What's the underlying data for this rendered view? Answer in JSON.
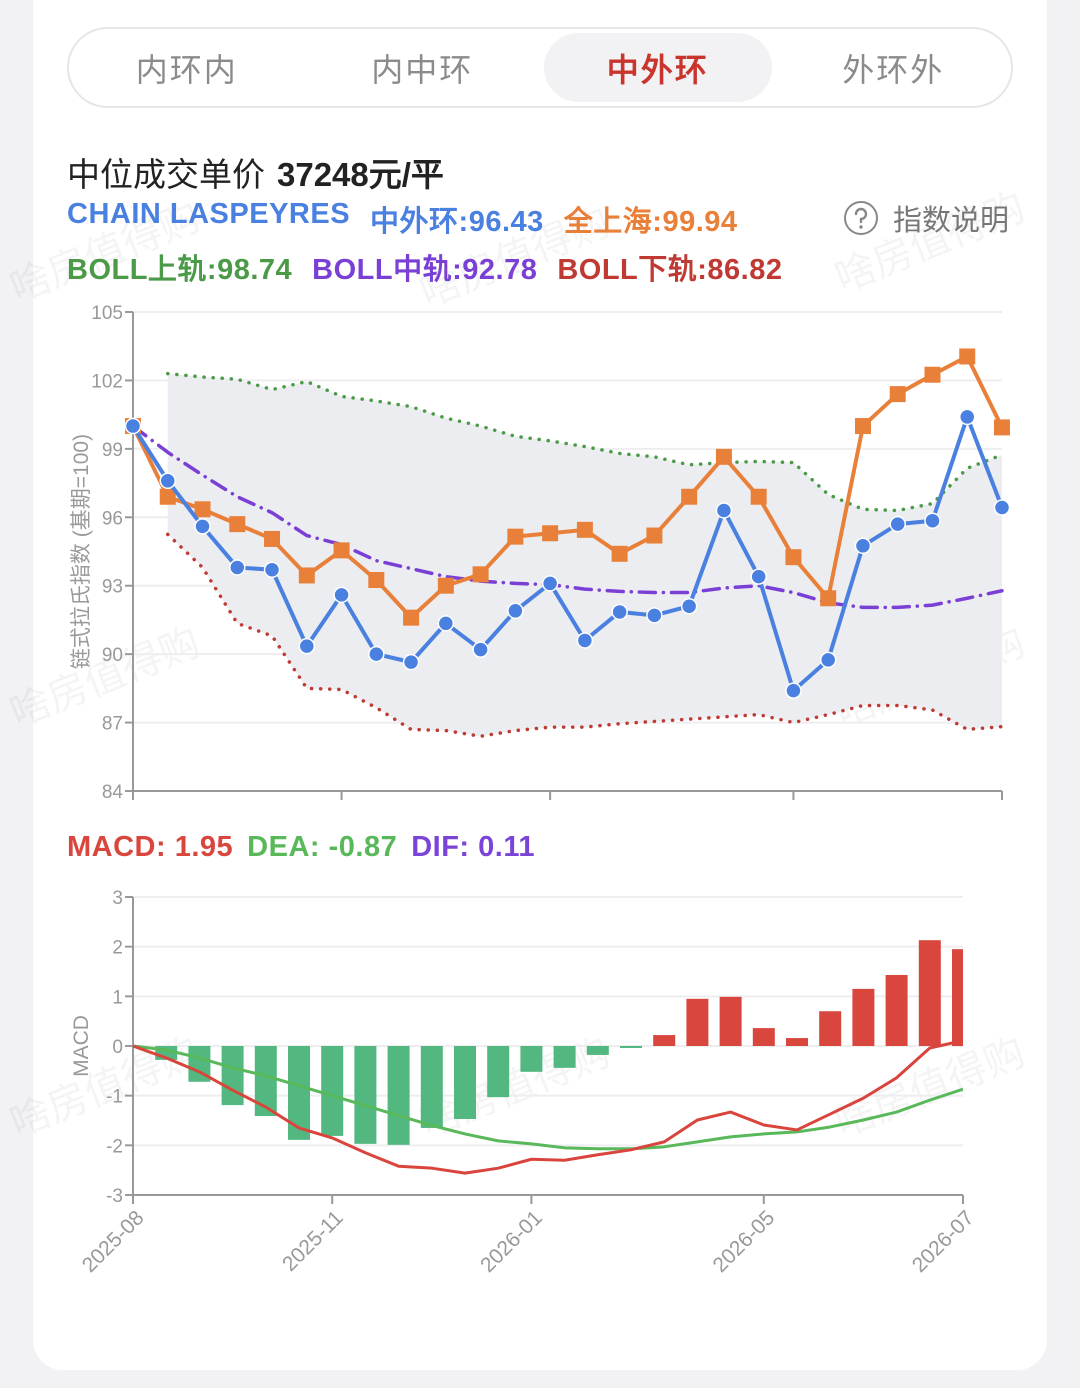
{
  "tabs": {
    "items": [
      "内环内",
      "内中环",
      "中外环",
      "外环外"
    ],
    "active": 2
  },
  "header": {
    "label": "中位成交单价",
    "price": "37248元/平",
    "help": "指数说明"
  },
  "watermark": "啥房值得购",
  "chart_data": [
    {
      "type": "line",
      "subtitle": "CHAIN LASPEYRES",
      "ylabel": "链式拉氏指数 (基期=100)",
      "ylim": [
        84,
        105
      ],
      "yticks": [
        84,
        87,
        90,
        93,
        96,
        99,
        102,
        105
      ],
      "grid": true,
      "band": {
        "color": "#ecedf0"
      },
      "series": [
        {
          "name": "中外环:96.43",
          "color": "#4a80e0",
          "style": "solid",
          "marker": "circle",
          "values": [
            100,
            97.6,
            95.6,
            93.8,
            93.7,
            90.35,
            92.6,
            90.0,
            89.65,
            91.35,
            90.2,
            91.9,
            93.1,
            90.6,
            91.85,
            91.7,
            92.1,
            96.3,
            93.4,
            88.4,
            89.75,
            94.75,
            95.7,
            95.85,
            100.4,
            96.43
          ]
        },
        {
          "name": "全上海:99.94",
          "color": "#e9803a",
          "style": "solid",
          "marker": "square",
          "values": [
            100,
            96.9,
            96.35,
            95.7,
            95.05,
            93.45,
            94.55,
            93.25,
            91.6,
            93.0,
            93.5,
            95.15,
            95.3,
            95.45,
            94.4,
            95.2,
            96.9,
            98.65,
            96.9,
            94.25,
            92.45,
            100.0,
            101.4,
            102.25,
            103.05,
            99.94
          ]
        },
        {
          "name": "BOLL上轨:98.74",
          "color": "#4a9a48",
          "style": "dotted",
          "fill": "upper",
          "values": [
            null,
            102.3,
            102.15,
            102.05,
            101.6,
            101.95,
            101.3,
            101.1,
            100.85,
            100.35,
            100.0,
            99.55,
            99.35,
            99.1,
            98.8,
            98.65,
            98.3,
            98.4,
            98.45,
            98.4,
            97.0,
            96.35,
            96.3,
            96.6,
            98.15,
            98.74
          ]
        },
        {
          "name": "BOLL中轨:92.78",
          "color": "#7a3fd4",
          "style": "dashdot",
          "values": [
            100,
            98.85,
            97.85,
            96.9,
            96.2,
            95.2,
            94.8,
            94.1,
            93.75,
            93.4,
            93.2,
            93.1,
            93.05,
            92.85,
            92.75,
            92.7,
            92.7,
            92.9,
            93.0,
            92.7,
            92.25,
            92.05,
            92.05,
            92.15,
            92.45,
            92.78
          ]
        },
        {
          "name": "BOLL下轨:86.82",
          "color": "#c03a34",
          "style": "dotted",
          "fill": "lower",
          "values": [
            null,
            95.25,
            93.8,
            91.35,
            90.8,
            88.5,
            88.45,
            87.65,
            86.7,
            86.65,
            86.4,
            86.65,
            86.8,
            86.8,
            86.95,
            87.05,
            87.15,
            87.25,
            87.35,
            87.0,
            87.35,
            87.75,
            87.75,
            87.55,
            86.7,
            86.82
          ]
        }
      ]
    },
    {
      "type": "macd",
      "ylabel": "MACD",
      "ylim": [
        -3,
        3
      ],
      "yticks": [
        -3,
        -2,
        -1,
        0,
        1,
        2,
        3
      ],
      "grid": true,
      "categories": [
        "2025-08",
        null,
        null,
        null,
        null,
        null,
        "2025-11",
        null,
        null,
        null,
        null,
        null,
        "2026-01",
        null,
        null,
        null,
        null,
        null,
        null,
        "2026-05",
        null,
        null,
        null,
        null,
        null,
        "2026-07"
      ],
      "series": [
        {
          "name": "MACD: 1.95",
          "kind": "bar",
          "color": "#d9463e",
          "negative_color": "#52b880",
          "values": [
            0,
            -0.28,
            -0.72,
            -1.19,
            -1.41,
            -1.89,
            -1.81,
            -1.97,
            -1.99,
            -1.65,
            -1.47,
            -1.03,
            -0.52,
            -0.44,
            -0.18,
            -0.04,
            0.22,
            0.95,
            0.99,
            0.36,
            0.16,
            0.7,
            1.15,
            1.43,
            2.13,
            1.95
          ]
        },
        {
          "name": "DEA: -0.87",
          "kind": "line",
          "color": "#58b85a",
          "values": [
            0,
            -0.08,
            -0.24,
            -0.44,
            -0.6,
            -0.8,
            -1.0,
            -1.2,
            -1.4,
            -1.6,
            -1.77,
            -1.91,
            -1.97,
            -2.05,
            -2.07,
            -2.07,
            -2.03,
            -1.93,
            -1.83,
            -1.77,
            -1.73,
            -1.63,
            -1.49,
            -1.33,
            -1.09,
            -0.87
          ]
        },
        {
          "name": "DIF: 0.11",
          "kind": "line",
          "color": "#d9453d",
          "label_color": "#7b44d8",
          "values": [
            0,
            -0.24,
            -0.52,
            -0.89,
            -1.23,
            -1.65,
            -1.85,
            -2.15,
            -2.42,
            -2.46,
            -2.56,
            -2.46,
            -2.28,
            -2.3,
            -2.19,
            -2.09,
            -1.93,
            -1.49,
            -1.33,
            -1.59,
            -1.69,
            -1.37,
            -1.05,
            -0.64,
            -0.04,
            0.11
          ]
        }
      ]
    }
  ]
}
